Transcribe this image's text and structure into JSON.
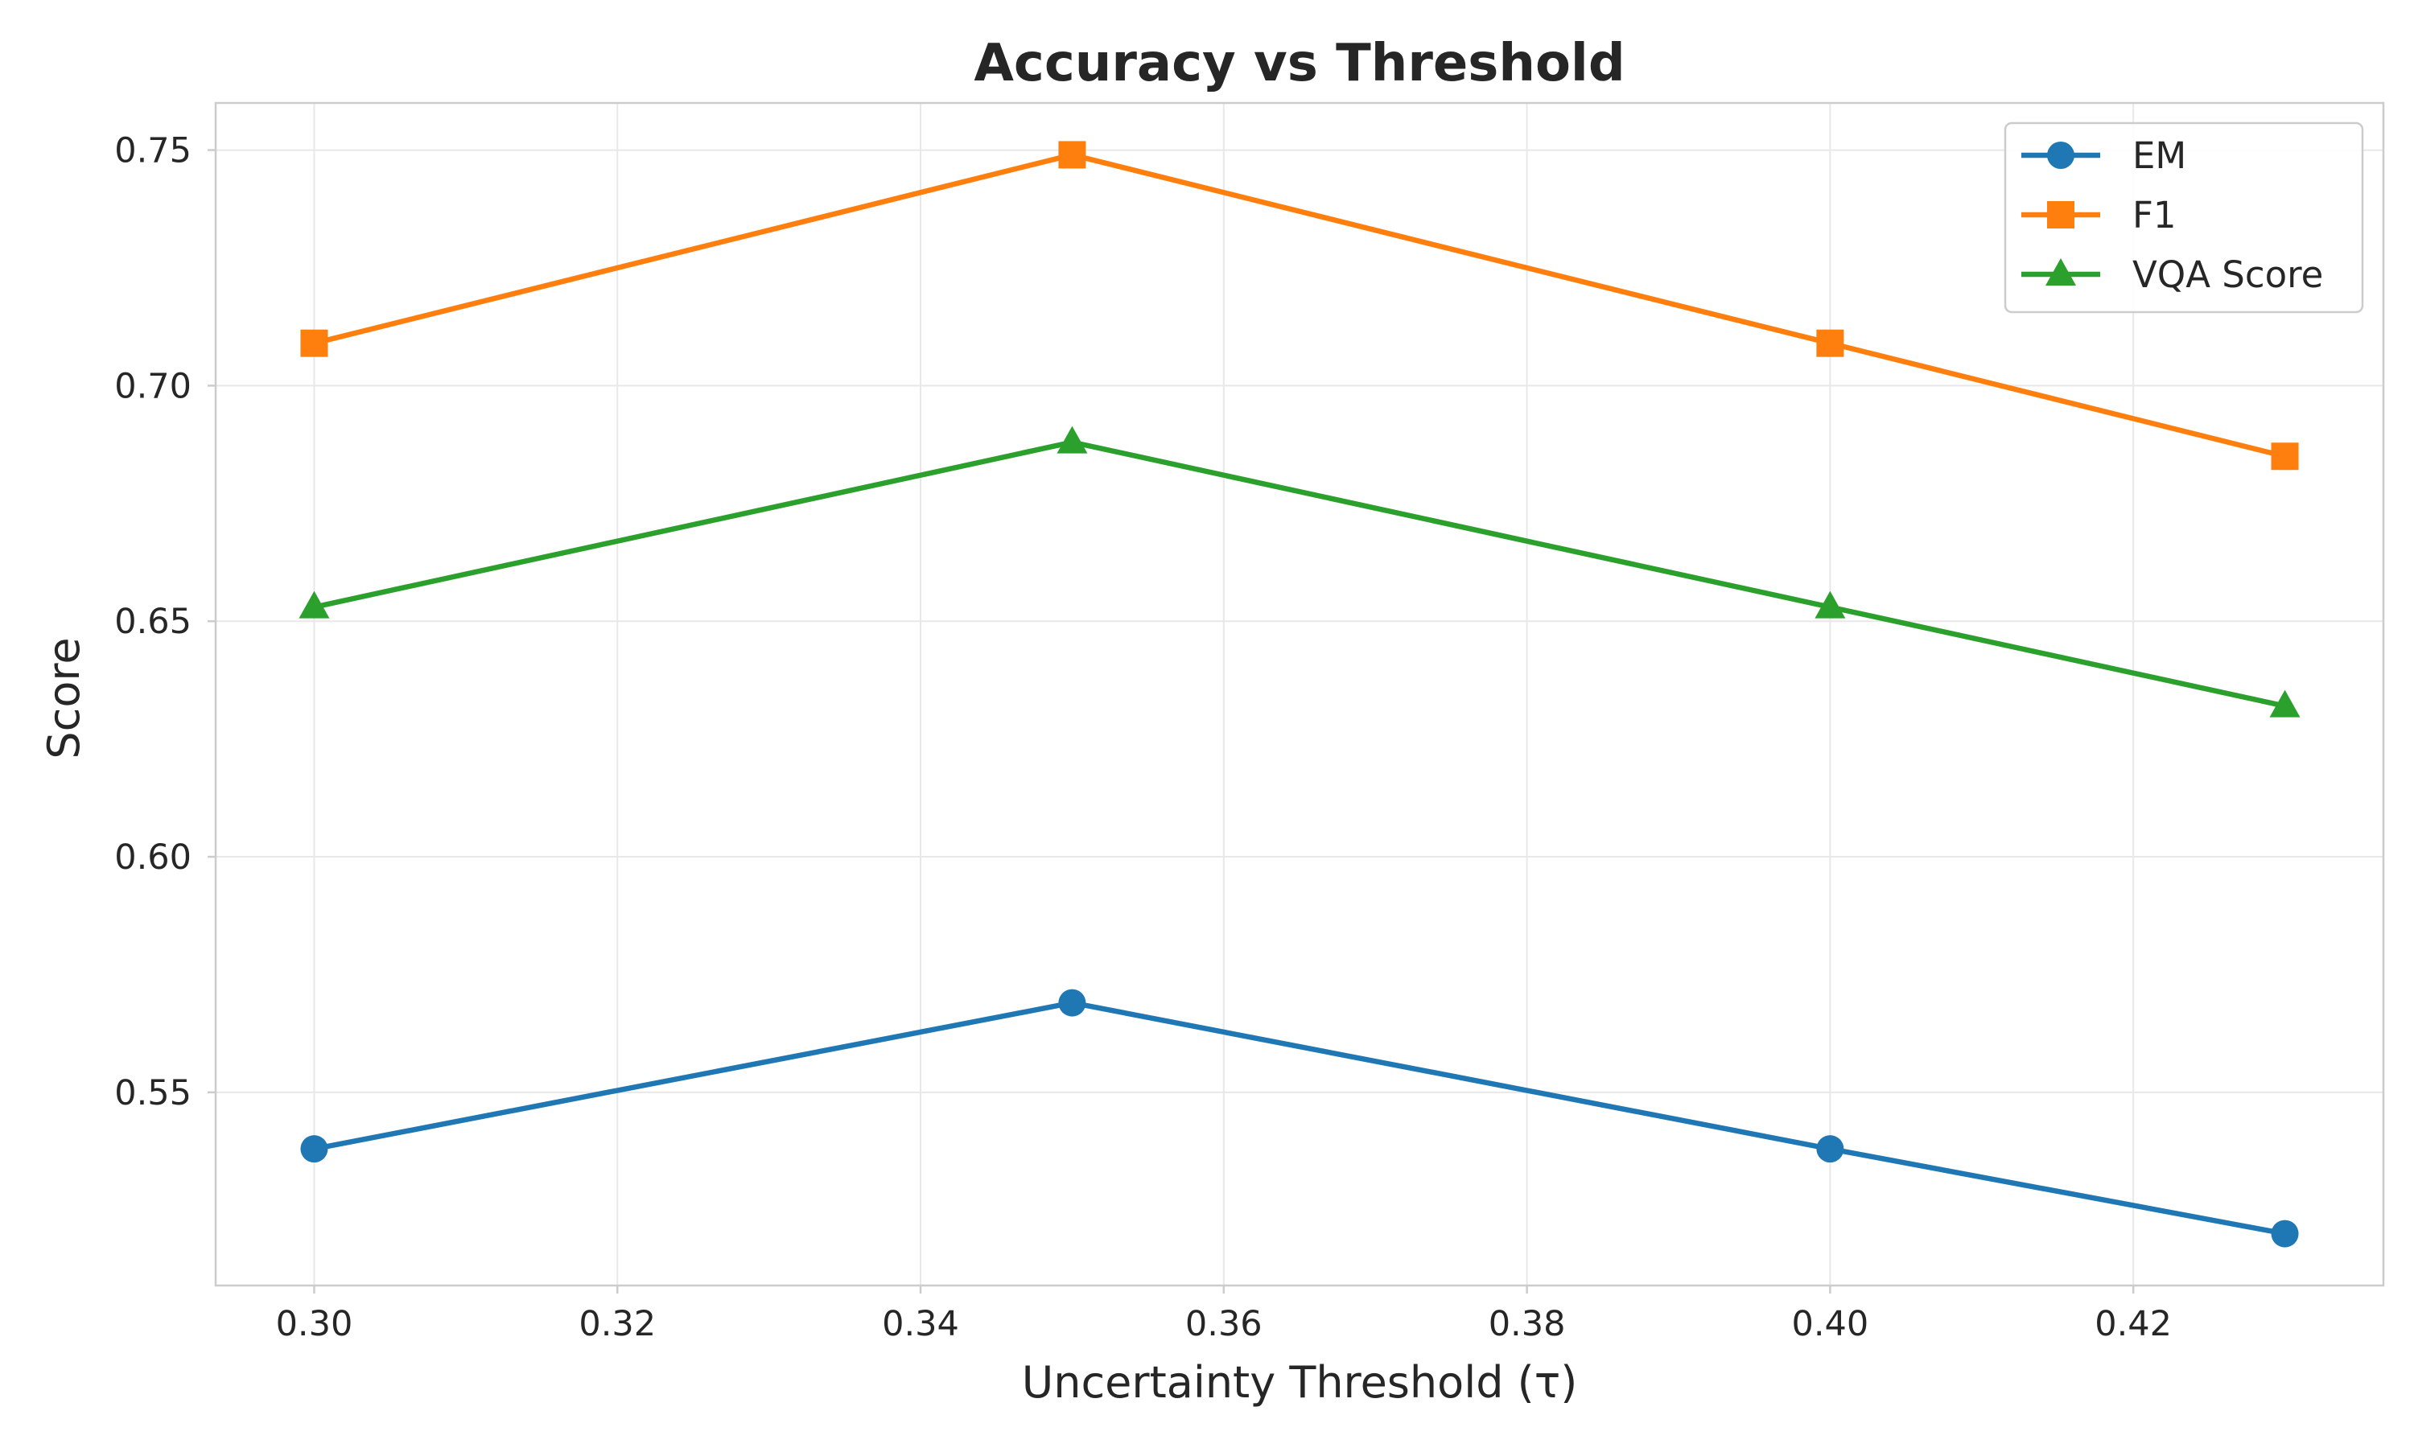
{
  "chart_data": {
    "type": "line",
    "title": "Accuracy vs Threshold",
    "xlabel": "Uncertainty Threshold (τ)",
    "ylabel": "Score",
    "xlim": [
      0.2935,
      0.4365
    ],
    "ylim": [
      0.509,
      0.76
    ],
    "x_ticks": [
      0.3,
      0.32,
      0.34,
      0.36,
      0.38,
      0.4,
      0.42
    ],
    "x_tick_labels": [
      "0.30",
      "0.32",
      "0.34",
      "0.36",
      "0.38",
      "0.40",
      "0.42"
    ],
    "y_ticks": [
      0.55,
      0.6,
      0.65,
      0.7,
      0.75
    ],
    "y_tick_labels": [
      "0.55",
      "0.60",
      "0.65",
      "0.70",
      "0.75"
    ],
    "grid": true,
    "legend_position": "top-right",
    "x": [
      0.3,
      0.35,
      0.4,
      0.43
    ],
    "series": [
      {
        "name": "EM",
        "values": [
          0.538,
          0.569,
          0.538,
          0.52
        ],
        "color": "#1f77b4",
        "marker": "circle"
      },
      {
        "name": "F1",
        "values": [
          0.709,
          0.749,
          0.709,
          0.685
        ],
        "color": "#ff7f0e",
        "marker": "square"
      },
      {
        "name": "VQA Score",
        "values": [
          0.653,
          0.688,
          0.653,
          0.632
        ],
        "color": "#2ca02c",
        "marker": "triangle"
      }
    ]
  }
}
